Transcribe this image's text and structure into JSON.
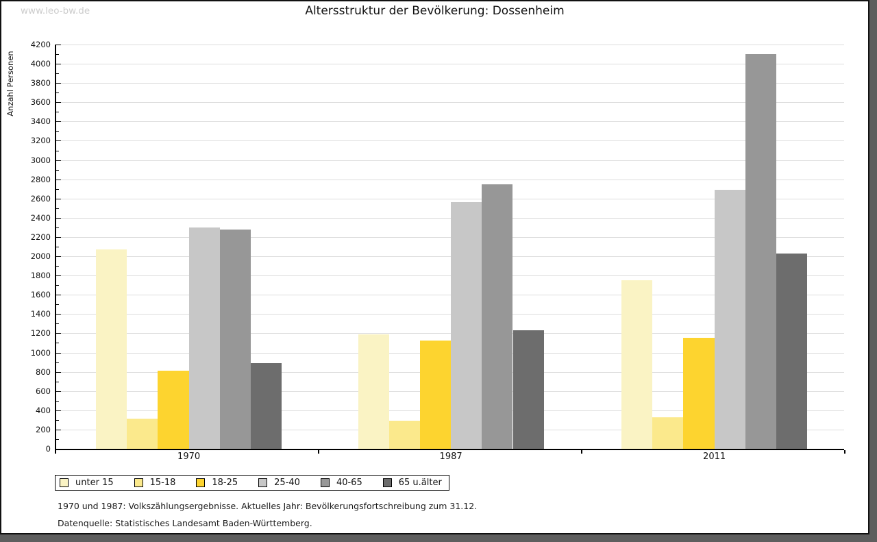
{
  "watermark": "www.leo-bw.de",
  "title": "Altersstruktur der Bevölkerung: Dossenheim",
  "chart_data": {
    "type": "bar",
    "title": "Altersstruktur der Bevölkerung: Dossenheim",
    "xlabel": "",
    "ylabel": "Anzahl Personen",
    "ylim": [
      0,
      4200
    ],
    "ytick_step": 200,
    "yminor_step": 100,
    "grid": true,
    "legend_position": "bottom-left",
    "categories": [
      "1970",
      "1987",
      "2011"
    ],
    "series": [
      {
        "name": "unter 15",
        "color": "#FAF3C4",
        "values": [
          2070,
          1190,
          1750
        ]
      },
      {
        "name": "15-18",
        "color": "#FBE98C",
        "values": [
          310,
          290,
          330
        ]
      },
      {
        "name": "18-25",
        "color": "#FDD42F",
        "values": [
          810,
          1125,
          1150
        ]
      },
      {
        "name": "25-40",
        "color": "#C7C7C7",
        "values": [
          2300,
          2560,
          2690
        ]
      },
      {
        "name": "40-65",
        "color": "#979797",
        "values": [
          2280,
          2750,
          4100
        ]
      },
      {
        "name": "65 u.älter",
        "color": "#6D6D6D",
        "values": [
          890,
          1235,
          2030
        ]
      }
    ]
  },
  "footnotes": [
    "1970 und 1987: Volkszählungsergebnisse. Aktuelles Jahr: Bevölkerungsfortschreibung zum 31.12.",
    "Datenquelle: Statistisches Landesamt Baden-Württemberg."
  ]
}
